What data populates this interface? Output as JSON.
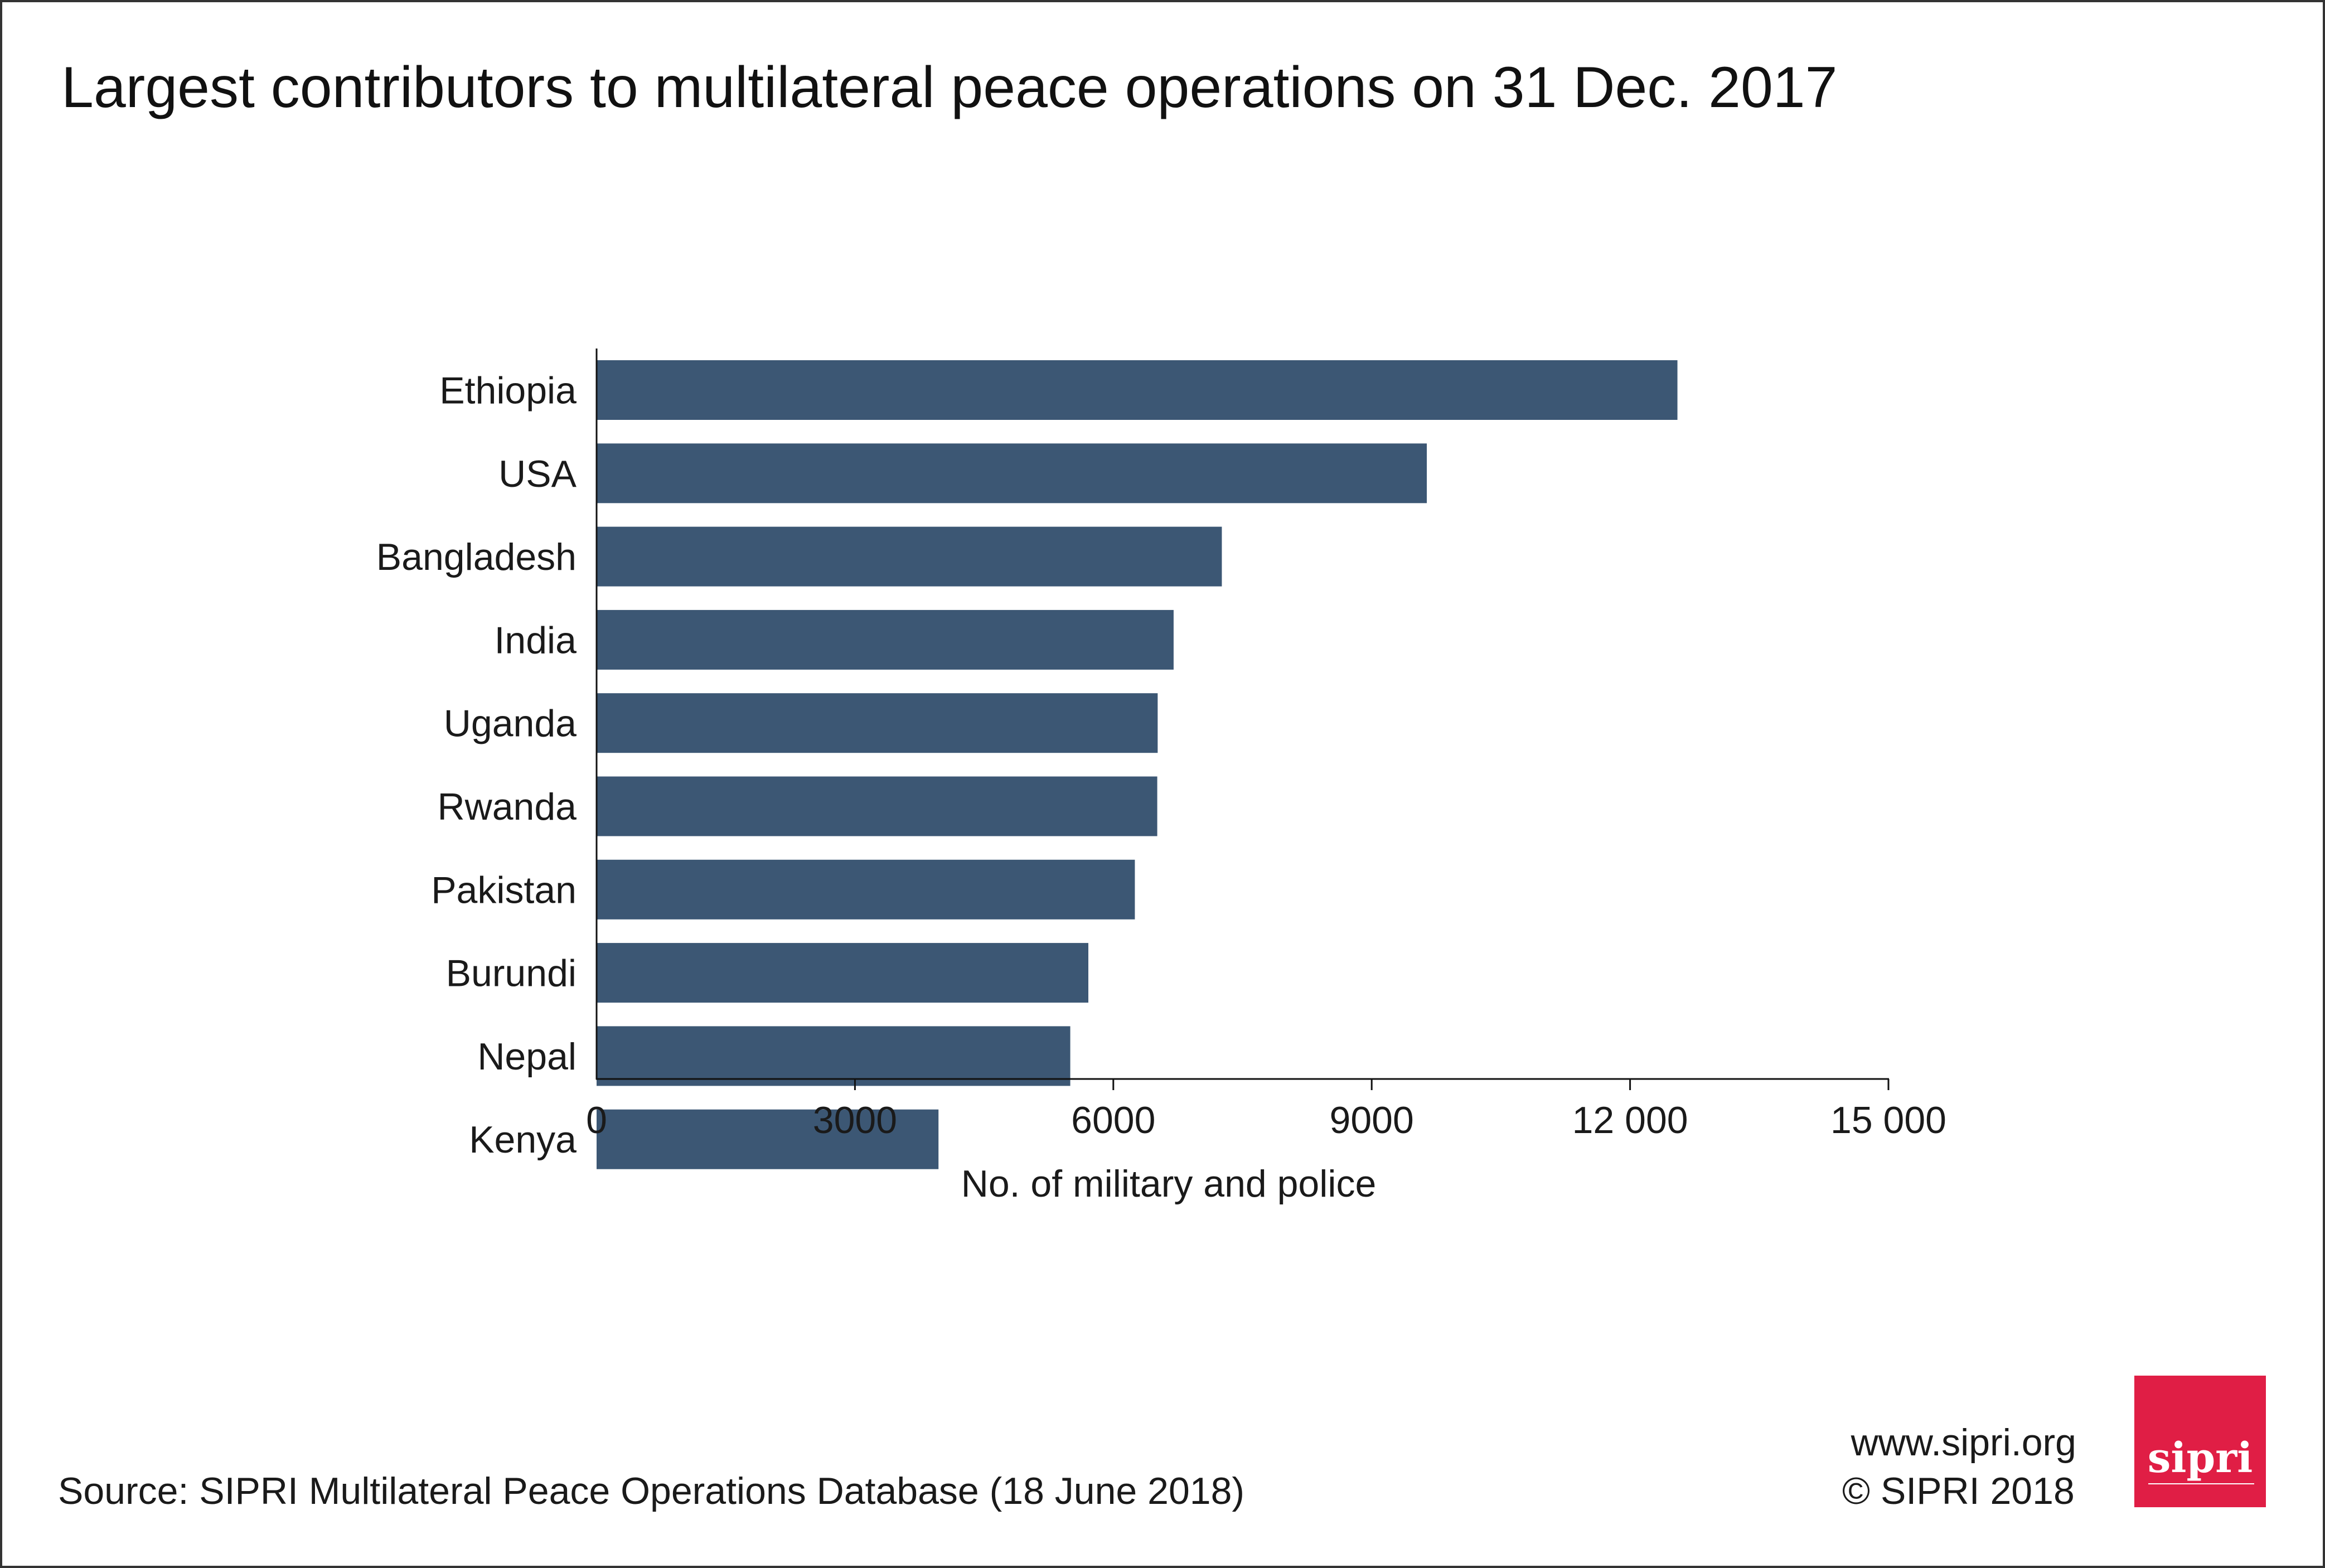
{
  "chart_data": {
    "type": "bar",
    "orientation": "horizontal",
    "title": "Largest contributors to multilateral peace operations on 31 Dec. 2017",
    "categories": [
      "Ethiopia",
      "USA",
      "Bangladesh",
      "India",
      "Uganda",
      "Rwanda",
      "Pakistan",
      "Burundi",
      "Nepal",
      "Kenya"
    ],
    "values": [
      12550,
      9640,
      7260,
      6700,
      6515,
      6510,
      6250,
      5710,
      5500,
      3970
    ],
    "xlabel": "No. of military and police",
    "ylabel": "",
    "xlim": [
      0,
      15000
    ],
    "xticks": [
      0,
      3000,
      6000,
      9000,
      12000,
      15000
    ],
    "xtick_labels": [
      "0",
      "3000",
      "6000",
      "9000",
      "12 000",
      "15 000"
    ],
    "grid": false,
    "bar_color": "#3c5774"
  },
  "footer": {
    "source": "Source: SIPRI Multilateral Peace Operations Database (18 June 2018)",
    "website": "www.sipri.org",
    "copyright": "© SIPRI 2018"
  },
  "logo": {
    "text": "sipri",
    "color": "#e01e45"
  }
}
